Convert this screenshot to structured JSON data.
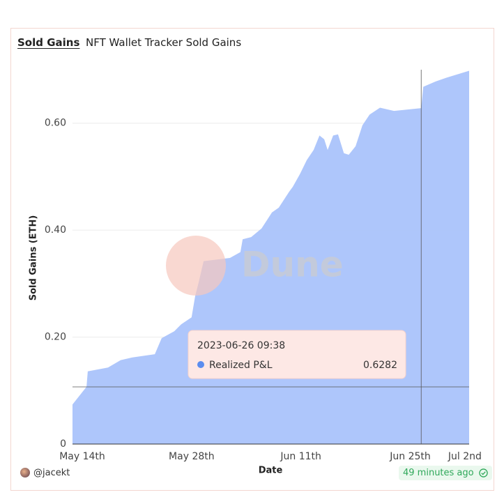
{
  "header": {
    "tab": "Sold Gains",
    "title": "NFT Wallet Tracker Sold Gains"
  },
  "watermark": "Dune",
  "footer": {
    "author": "@jacekt",
    "updated": "49 minutes ago"
  },
  "chart_data": {
    "type": "area",
    "x_label": "Date",
    "y_label": "Sold Gains (ETH)",
    "x": [
      "2023-05-12 18:00",
      "2023-05-14 13:00",
      "2023-05-14 17:00",
      "2023-05-17 07:00",
      "2023-05-18 22:00",
      "2023-05-20 10:00",
      "2023-05-23 07:00",
      "2023-05-24 04:00",
      "2023-05-25 19:00",
      "2023-05-26 16:00",
      "2023-05-28 00:00",
      "2023-05-28 11:00",
      "2023-05-28 22:00",
      "2023-05-29 13:00",
      "2023-06-01 22:00",
      "2023-06-03 06:00",
      "2023-06-03 13:00",
      "2023-06-04 15:00",
      "2023-06-05 23:00",
      "2023-06-07 07:00",
      "2023-06-08 04:00",
      "2023-06-09 12:00",
      "2023-06-09 23:00",
      "2023-06-10 21:00",
      "2023-06-11 18:00",
      "2023-06-12 15:00",
      "2023-06-13 09:00",
      "2023-06-13 23:30",
      "2023-06-14 10:00",
      "2023-06-15 03:00",
      "2023-06-15 18:00",
      "2023-06-16 12:00",
      "2023-06-17 03:00",
      "2023-06-18 00:00",
      "2023-06-18 21:00",
      "2023-06-19 19:00",
      "2023-06-21 03:00",
      "2023-06-22 22:00",
      "2023-06-26 09:38",
      "2023-06-26 16:00",
      "2023-06-28 06:00",
      "2023-06-29 15:00",
      "2023-07-02 13:00"
    ],
    "series": [
      {
        "name": "Realized P&L",
        "color": "#aac3fb",
        "dot_color": "#5b8def",
        "values": [
          0.074,
          0.107,
          0.136,
          0.143,
          0.157,
          0.162,
          0.168,
          0.198,
          0.211,
          0.224,
          0.237,
          0.277,
          0.303,
          0.342,
          0.348,
          0.359,
          0.383,
          0.387,
          0.403,
          0.433,
          0.442,
          0.472,
          0.481,
          0.505,
          0.531,
          0.55,
          0.577,
          0.57,
          0.55,
          0.577,
          0.579,
          0.544,
          0.541,
          0.557,
          0.596,
          0.616,
          0.629,
          0.623,
          0.6282,
          0.668,
          0.678,
          0.685,
          0.698
        ]
      }
    ],
    "xlim": [
      "2023-05-12 18:00",
      "2023-07-02 13:00"
    ],
    "xticks": [
      {
        "value": "2023-05-14",
        "label": "May 14th"
      },
      {
        "value": "2023-05-28",
        "label": "May 28th"
      },
      {
        "value": "2023-06-11",
        "label": "Jun 11th"
      },
      {
        "value": "2023-06-25",
        "label": "Jun 25th"
      },
      {
        "value": "2023-07-02",
        "label": "Jul 2nd"
      }
    ],
    "ylim": [
      0,
      0.7
    ],
    "yticks": [
      0,
      {
        "value": 0.2,
        "label": "0.20"
      },
      {
        "value": 0.4,
        "label": "0.40"
      },
      {
        "value": 0.6,
        "label": "0.60"
      }
    ],
    "grid": true,
    "tooltip": {
      "x": "2023-06-26 09:38",
      "value": 0.6282
    }
  }
}
